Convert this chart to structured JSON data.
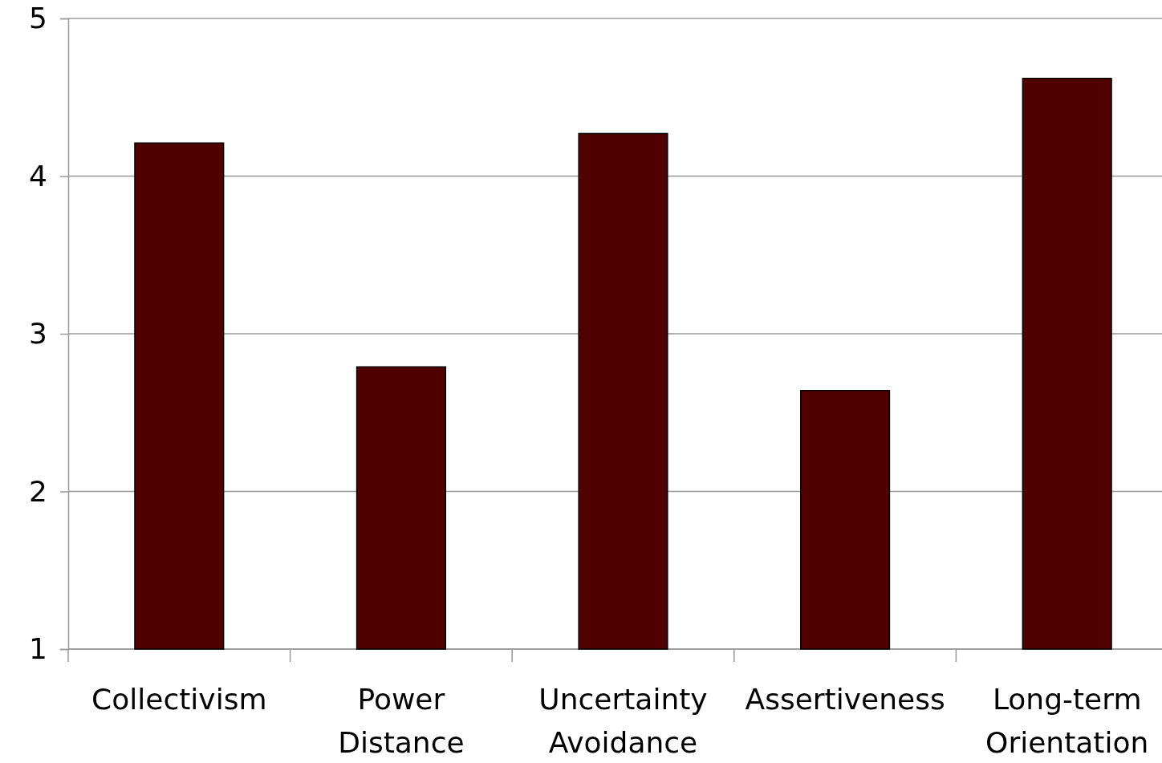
{
  "chart_data": {
    "type": "bar",
    "categories": [
      "Collectivism",
      "Power Distance",
      "Uncertainty Avoidance",
      "Assertiveness",
      "Long-term Orientation"
    ],
    "values": [
      4.21,
      2.79,
      4.27,
      2.64,
      4.62
    ],
    "color": "#500000",
    "ylim": [
      1,
      5
    ],
    "yticks": [
      1,
      2,
      3,
      4,
      5
    ],
    "grid": "y"
  }
}
